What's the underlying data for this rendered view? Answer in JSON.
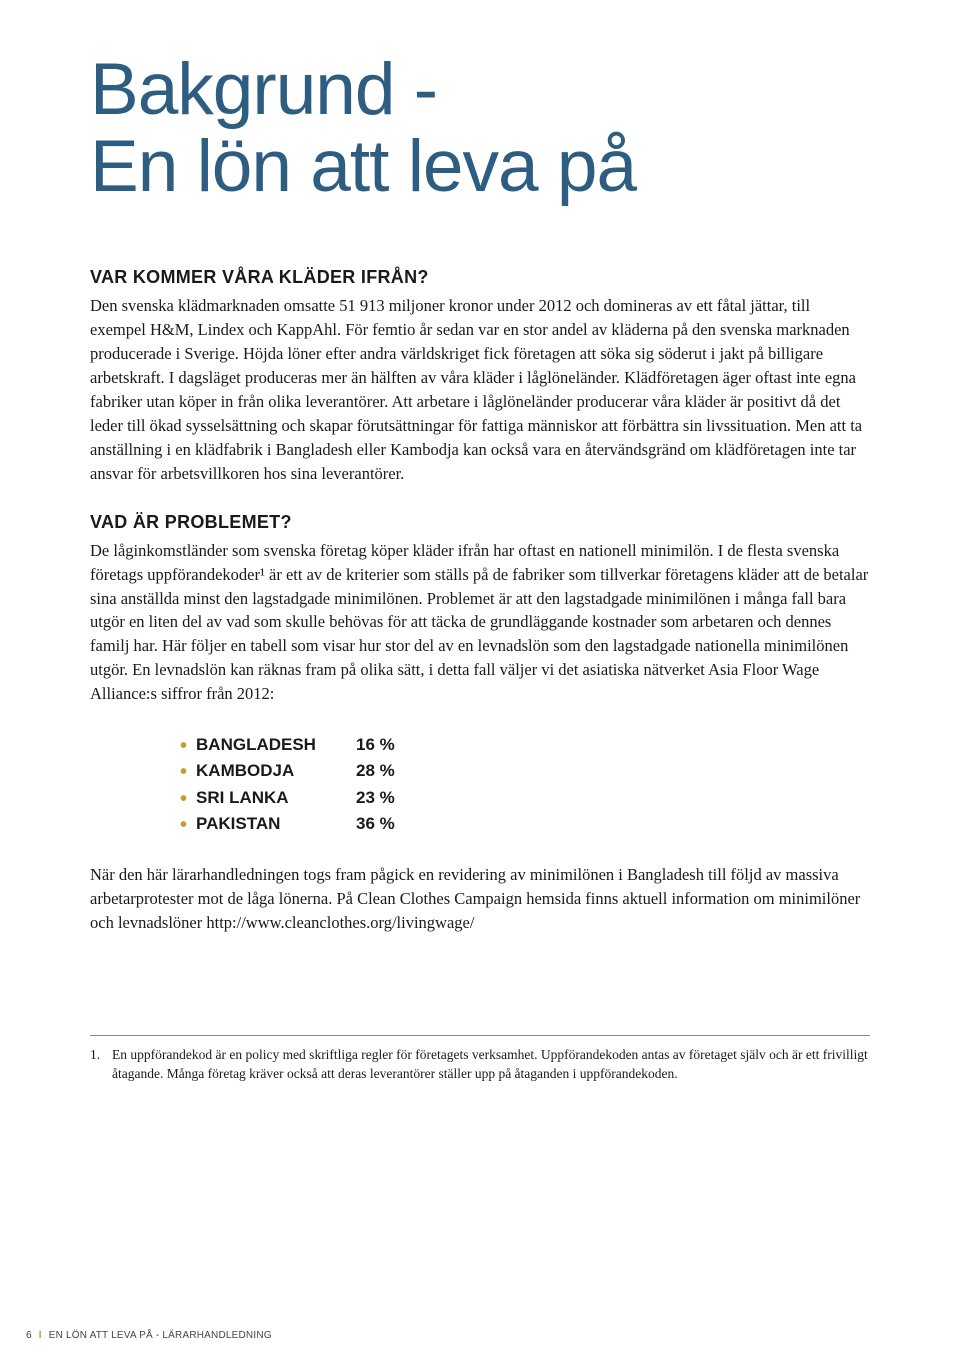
{
  "title_line1": "Bakgrund -",
  "title_line2": "En lön att leva på",
  "section1": {
    "heading": "VAR KOMMER VÅRA KLÄDER IFRÅN?",
    "body": "Den svenska klädmarknaden omsatte 51 913 miljoner kronor under 2012 och domineras av ett fåtal jättar, till exempel H&M, Lindex och KappAhl. För femtio år sedan var en stor andel av kläderna på den svenska marknaden producerade i Sverige. Höjda löner efter andra världskriget fick företagen att söka sig söderut i jakt på billigare arbetskraft. I dagsläget produceras mer än hälften av våra kläder i låglöneländer. Klädföretagen äger oftast inte egna fabriker utan köper in från olika leverantörer. Att arbetare i låglöneländer producerar våra kläder är positivt då det leder till ökad sysselsättning och skapar förutsättningar för fattiga människor att förbättra sin livssituation. Men att ta anställning i en klädfabrik i Bangladesh eller Kambodja kan också vara en återvändsgränd om klädföretagen inte tar ansvar för arbetsvillkoren hos sina leverantörer."
  },
  "section2": {
    "heading": "VAD ÄR PROBLEMET?",
    "body": "De låginkomstländer som svenska företag köper kläder ifrån har oftast en nationell minimilön. I de flesta svenska företags uppförandekoder¹ är ett av de kriterier som ställs på de fabriker som tillverkar företagens kläder att de betalar sina anställda minst den lagstadgade minimilönen. Problemet är att den lagstadgade minimilönen i många fall bara utgör en liten del av vad som skulle behövas för att täcka de grundläggande kostnader som arbetaren och dennes familj har. Här följer en tabell som visar hur stor del av en levnadslön som den lagstadgade nationella minimilönen utgör. En levnadslön kan räknas fram på olika sätt, i detta fall väljer vi det asiatiska nätverket Asia Floor Wage Alliance:s siffror från 2012:"
  },
  "wage_table": {
    "bullet_color": "#c99a2c",
    "rows": [
      {
        "country": "BANGLADESH",
        "pct": "16 %"
      },
      {
        "country": "KAMBODJA",
        "pct": "28 %"
      },
      {
        "country": "SRI LANKA",
        "pct": "23 %"
      },
      {
        "country": "PAKISTAN",
        "pct": "36 %"
      }
    ]
  },
  "section3": {
    "body": "När den här lärarhandledningen togs fram pågick en revidering av minimilönen i Bangladesh till följd av massiva arbetarprotester mot de låga lönerna. På Clean Clothes Campaign hemsida finns aktuell information om minimilöner och levnadslöner http://www.cleanclothes.org/livingwage/"
  },
  "footnote": {
    "num": "1.",
    "text": "En uppförandekod är en policy med skriftliga regler för företagets verksamhet. Uppförandekoden antas av företaget själv och är ett frivilligt åtagande. Många företag kräver också att deras leverantörer ställer upp på åtaganden i uppförandekoden."
  },
  "footer": {
    "page_num": "6",
    "title": "EN LÖN ATT LEVA PÅ - LÄRARHANDLEDNING"
  },
  "colors": {
    "title": "#2e5d82",
    "accent": "#c99a2c",
    "text": "#1a1a1a",
    "background": "#ffffff"
  }
}
